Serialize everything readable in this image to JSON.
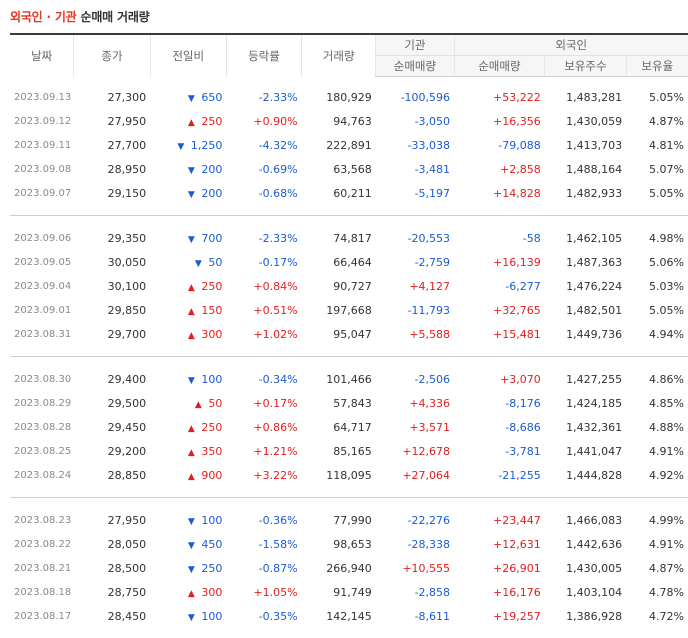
{
  "title": {
    "highlight": "외국인 · 기관",
    "rest": " 순매매 거래량"
  },
  "columns": {
    "date": "날짜",
    "close": "종가",
    "change": "전일비",
    "rate": "등락률",
    "volume": "거래량",
    "institution": "기관",
    "foreign": "외국인",
    "inst_net": "순매매량",
    "foreign_net": "순매매량",
    "holdings": "보유주수",
    "ratio": "보유율"
  },
  "colors": {
    "up": "#e02020",
    "down": "#1a5bd6",
    "title_accent": "#e8331f"
  },
  "icons": {
    "up": "▲",
    "down": "▼"
  },
  "groups": [
    [
      {
        "date": "2023.09.13",
        "close": "27,300",
        "dir": "down",
        "change": "650",
        "rate": "-2.33%",
        "volume": "180,929",
        "inst": "-100,596",
        "foreign": "+53,222",
        "holdings": "1,483,281",
        "ratio": "5.05%"
      },
      {
        "date": "2023.09.12",
        "close": "27,950",
        "dir": "up",
        "change": "250",
        "rate": "+0.90%",
        "volume": "94,763",
        "inst": "-3,050",
        "foreign": "+16,356",
        "holdings": "1,430,059",
        "ratio": "4.87%"
      },
      {
        "date": "2023.09.11",
        "close": "27,700",
        "dir": "down",
        "change": "1,250",
        "rate": "-4.32%",
        "volume": "222,891",
        "inst": "-33,038",
        "foreign": "-79,088",
        "holdings": "1,413,703",
        "ratio": "4.81%"
      },
      {
        "date": "2023.09.08",
        "close": "28,950",
        "dir": "down",
        "change": "200",
        "rate": "-0.69%",
        "volume": "63,568",
        "inst": "-3,481",
        "foreign": "+2,858",
        "holdings": "1,488,164",
        "ratio": "5.07%"
      },
      {
        "date": "2023.09.07",
        "close": "29,150",
        "dir": "down",
        "change": "200",
        "rate": "-0.68%",
        "volume": "60,211",
        "inst": "-5,197",
        "foreign": "+14,828",
        "holdings": "1,482,933",
        "ratio": "5.05%"
      }
    ],
    [
      {
        "date": "2023.09.06",
        "close": "29,350",
        "dir": "down",
        "change": "700",
        "rate": "-2.33%",
        "volume": "74,817",
        "inst": "-20,553",
        "foreign": "-58",
        "holdings": "1,462,105",
        "ratio": "4.98%"
      },
      {
        "date": "2023.09.05",
        "close": "30,050",
        "dir": "down",
        "change": "50",
        "rate": "-0.17%",
        "volume": "66,464",
        "inst": "-2,759",
        "foreign": "+16,139",
        "holdings": "1,487,363",
        "ratio": "5.06%"
      },
      {
        "date": "2023.09.04",
        "close": "30,100",
        "dir": "up",
        "change": "250",
        "rate": "+0.84%",
        "volume": "90,727",
        "inst": "+4,127",
        "foreign": "-6,277",
        "holdings": "1,476,224",
        "ratio": "5.03%"
      },
      {
        "date": "2023.09.01",
        "close": "29,850",
        "dir": "up",
        "change": "150",
        "rate": "+0.51%",
        "volume": "197,668",
        "inst": "-11,793",
        "foreign": "+32,765",
        "holdings": "1,482,501",
        "ratio": "5.05%"
      },
      {
        "date": "2023.08.31",
        "close": "29,700",
        "dir": "up",
        "change": "300",
        "rate": "+1.02%",
        "volume": "95,047",
        "inst": "+5,588",
        "foreign": "+15,481",
        "holdings": "1,449,736",
        "ratio": "4.94%"
      }
    ],
    [
      {
        "date": "2023.08.30",
        "close": "29,400",
        "dir": "down",
        "change": "100",
        "rate": "-0.34%",
        "volume": "101,466",
        "inst": "-2,506",
        "foreign": "+3,070",
        "holdings": "1,427,255",
        "ratio": "4.86%"
      },
      {
        "date": "2023.08.29",
        "close": "29,500",
        "dir": "up",
        "change": "50",
        "rate": "+0.17%",
        "volume": "57,843",
        "inst": "+4,336",
        "foreign": "-8,176",
        "holdings": "1,424,185",
        "ratio": "4.85%"
      },
      {
        "date": "2023.08.28",
        "close": "29,450",
        "dir": "up",
        "change": "250",
        "rate": "+0.86%",
        "volume": "64,717",
        "inst": "+3,571",
        "foreign": "-8,686",
        "holdings": "1,432,361",
        "ratio": "4.88%"
      },
      {
        "date": "2023.08.25",
        "close": "29,200",
        "dir": "up",
        "change": "350",
        "rate": "+1.21%",
        "volume": "85,165",
        "inst": "+12,678",
        "foreign": "-3,781",
        "holdings": "1,441,047",
        "ratio": "4.91%"
      },
      {
        "date": "2023.08.24",
        "close": "28,850",
        "dir": "up",
        "change": "900",
        "rate": "+3.22%",
        "volume": "118,095",
        "inst": "+27,064",
        "foreign": "-21,255",
        "holdings": "1,444,828",
        "ratio": "4.92%"
      }
    ],
    [
      {
        "date": "2023.08.23",
        "close": "27,950",
        "dir": "down",
        "change": "100",
        "rate": "-0.36%",
        "volume": "77,990",
        "inst": "-22,276",
        "foreign": "+23,447",
        "holdings": "1,466,083",
        "ratio": "4.99%"
      },
      {
        "date": "2023.08.22",
        "close": "28,050",
        "dir": "down",
        "change": "450",
        "rate": "-1.58%",
        "volume": "98,653",
        "inst": "-28,338",
        "foreign": "+12,631",
        "holdings": "1,442,636",
        "ratio": "4.91%"
      },
      {
        "date": "2023.08.21",
        "close": "28,500",
        "dir": "down",
        "change": "250",
        "rate": "-0.87%",
        "volume": "266,940",
        "inst": "+10,555",
        "foreign": "+26,901",
        "holdings": "1,430,005",
        "ratio": "4.87%"
      },
      {
        "date": "2023.08.18",
        "close": "28,750",
        "dir": "up",
        "change": "300",
        "rate": "+1.05%",
        "volume": "91,749",
        "inst": "-2,858",
        "foreign": "+16,176",
        "holdings": "1,403,104",
        "ratio": "4.78%"
      },
      {
        "date": "2023.08.17",
        "close": "28,450",
        "dir": "down",
        "change": "100",
        "rate": "-0.35%",
        "volume": "142,145",
        "inst": "-8,611",
        "foreign": "+19,257",
        "holdings": "1,386,928",
        "ratio": "4.72%"
      }
    ]
  ]
}
